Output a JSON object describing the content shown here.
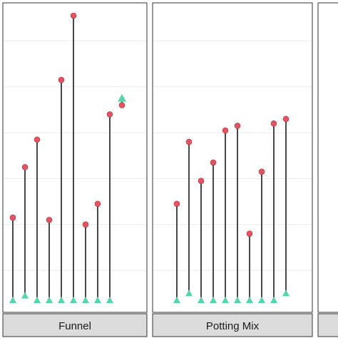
{
  "chart_data": {
    "type": "dumbbell",
    "facet_layout": "facets in a single row, strip labels at bottom; third facet cropped at right edge",
    "grid": true,
    "legend": "none",
    "marker_colors": {
      "baseline": "#55d6a8",
      "final": "#e05561",
      "stem": "#1a1a1a",
      "panel_background": "#ffffff",
      "panel_border": "#333333",
      "strip_background": "#dcdcdc",
      "grid": "#ebebeb"
    },
    "ylim": [
      0,
      6.2
    ],
    "facets": [
      {
        "label": "Funnel",
        "n": 9,
        "start": [
          0.0,
          0.1,
          0.0,
          0.0,
          0.0,
          0.0,
          0.0,
          0.0,
          0.0
        ],
        "end": [
          1.8,
          2.9,
          3.5,
          1.75,
          4.8,
          6.2,
          1.65,
          2.1,
          4.05
        ]
      },
      {
        "label": "Potting Mix",
        "n": 10,
        "start": [
          0.0,
          0.15,
          0.0,
          0.0,
          0.0,
          0.0,
          0.0,
          0.0,
          0.0,
          0.15
        ],
        "end": [
          2.1,
          3.45,
          2.6,
          3.0,
          3.7,
          3.8,
          1.45,
          2.8,
          3.85,
          3.95
        ]
      }
    ],
    "extra_point": {
      "facet": "Funnel",
      "start": 4.4,
      "end": 4.25,
      "arrow": "up"
    }
  }
}
